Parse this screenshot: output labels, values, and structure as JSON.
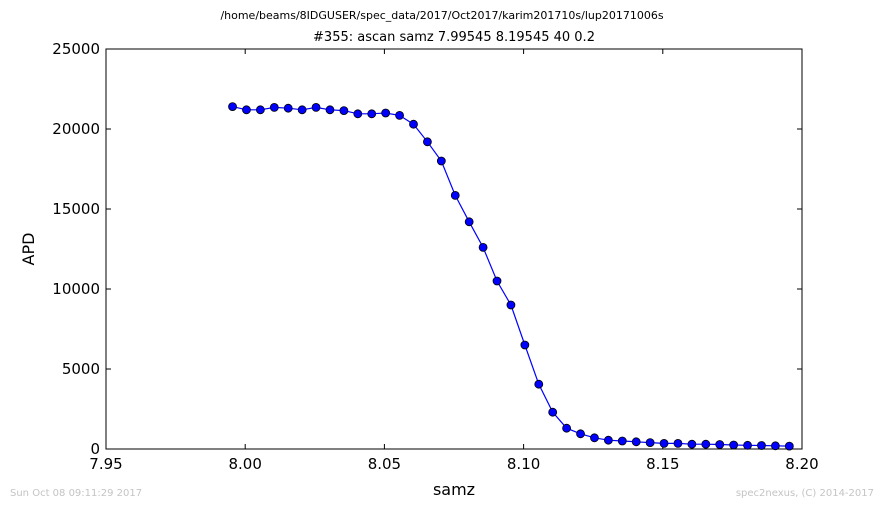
{
  "header": {
    "file_path": "/home/beams/8IDGUSER/spec_data/2017/Oct2017/karim201710s/lup20171006s"
  },
  "footer": {
    "timestamp": "Sun Oct 08 09:11:29 2017",
    "credit": "spec2nexus, (C) 2014-2017"
  },
  "colors": {
    "series": "#0000ff",
    "footer_text": "#c4c4c4"
  },
  "chart_data": {
    "type": "line",
    "title": "#355: ascan  samz 7.99545 8.19545  40 0.2",
    "xlabel": "samz",
    "ylabel": "APD",
    "xlim": [
      7.95,
      8.2
    ],
    "ylim": [
      0,
      25000
    ],
    "x_ticks": [
      7.95,
      8.0,
      8.05,
      8.1,
      8.15,
      8.2
    ],
    "x_tick_labels": [
      "7.95",
      "8.00",
      "8.05",
      "8.10",
      "8.15",
      "8.20"
    ],
    "y_ticks": [
      0,
      5000,
      10000,
      15000,
      20000,
      25000
    ],
    "y_tick_labels": [
      "0",
      "5000",
      "10000",
      "15000",
      "20000",
      "25000"
    ],
    "grid": false,
    "marker": "circle",
    "series": [
      {
        "x": [
          7.99545,
          8.00045,
          8.00545,
          8.01045,
          8.01545,
          8.02045,
          8.02545,
          8.03045,
          8.03545,
          8.04045,
          8.04545,
          8.05045,
          8.05545,
          8.06045,
          8.06545,
          8.07045,
          8.07545,
          8.08045,
          8.08545,
          8.09045,
          8.09545,
          8.10045,
          8.10545,
          8.11045,
          8.11545,
          8.12045,
          8.12545,
          8.13045,
          8.13545,
          8.14045,
          8.14545,
          8.15045,
          8.15545,
          8.16045,
          8.16545,
          8.17045,
          8.17545,
          8.18045,
          8.18545,
          8.19045,
          8.19545
        ],
        "y": [
          21400,
          21200,
          21200,
          21350,
          21300,
          21200,
          21350,
          21200,
          21150,
          20950,
          20950,
          21000,
          20850,
          20300,
          19200,
          18000,
          15850,
          14200,
          12600,
          10500,
          9000,
          6500,
          4050,
          2300,
          1300,
          950,
          700,
          550,
          500,
          450,
          400,
          350,
          350,
          300,
          300,
          280,
          250,
          230,
          220,
          200,
          180
        ]
      }
    ]
  }
}
